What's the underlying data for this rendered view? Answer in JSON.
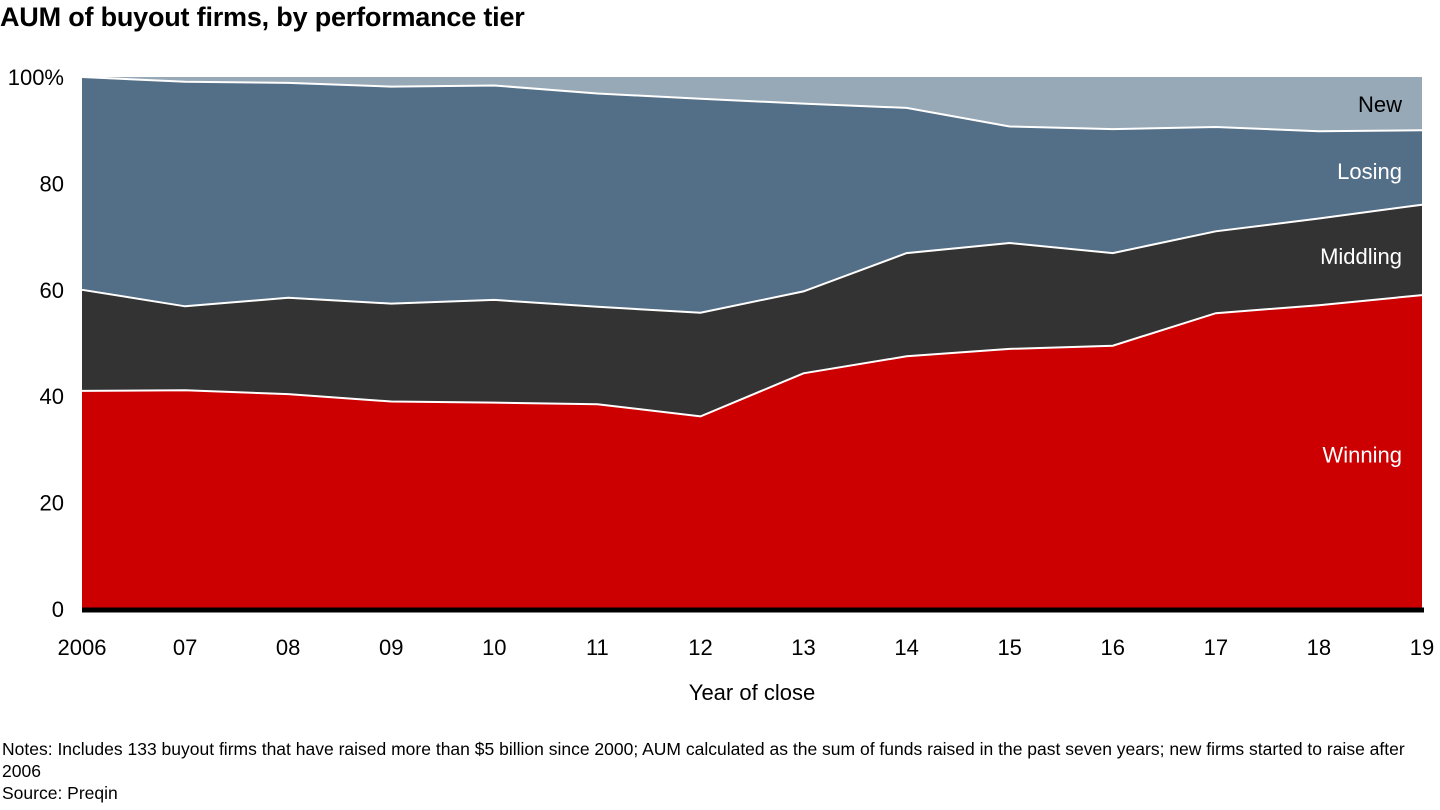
{
  "title": "AUM of buyout firms, by performance tier",
  "notes": "Notes: Includes 133 buyout firms that have raised more than $5 billion since 2000; AUM calculated as the sum of funds raised in the past seven years; new firms started to raise after 2006",
  "source": "Source: Preqin",
  "chart_data": {
    "type": "area",
    "stacked": true,
    "title": "AUM of buyout firms, by performance tier",
    "xlabel": "Year of close",
    "ylabel": "",
    "x": [
      "2006",
      "07",
      "08",
      "09",
      "10",
      "11",
      "12",
      "13",
      "14",
      "15",
      "16",
      "17",
      "18",
      "19"
    ],
    "ylim": [
      0,
      100
    ],
    "yticks": [
      "0",
      "20",
      "40",
      "60",
      "80",
      "100%"
    ],
    "grid": false,
    "legend": "labels inside areas at right",
    "series": [
      {
        "name": "Winning",
        "color": "#cc0000",
        "label_color": "#ffffff",
        "values": [
          41,
          41.1,
          40.4,
          39,
          38.8,
          38.5,
          36.2,
          44.3,
          47.5,
          48.9,
          49.5,
          55.6,
          57.1,
          59
        ]
      },
      {
        "name": "Middling",
        "color": "#333333",
        "label_color": "#ffffff",
        "values": [
          19,
          15.8,
          18.1,
          18.4,
          19.3,
          18.3,
          19.5,
          15.4,
          19.4,
          19.9,
          17.4,
          15.4,
          16.3,
          17
        ]
      },
      {
        "name": "Losing",
        "color": "#536e87",
        "label_color": "#ffffff",
        "values": [
          40,
          42.2,
          40.4,
          40.8,
          40.3,
          40.1,
          40.2,
          35.3,
          27.3,
          21.9,
          23.3,
          19.6,
          16.4,
          14
        ]
      },
      {
        "name": "New",
        "color": "#97a8b6",
        "label_color": "#000000",
        "values": [
          0,
          0.9,
          1.1,
          1.8,
          1.6,
          3.1,
          4.1,
          5,
          5.8,
          9.3,
          9.8,
          9.4,
          10.2,
          10
        ]
      }
    ]
  }
}
